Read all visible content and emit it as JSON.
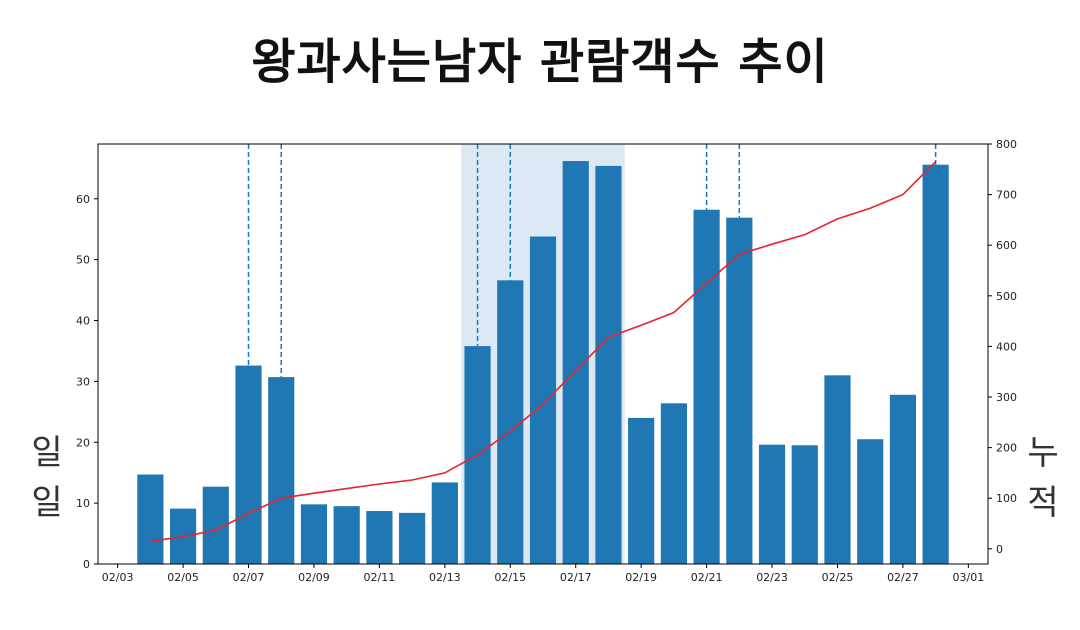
{
  "chart_data": {
    "type": "bar",
    "title": "왕과사는남자 관람객수 추이",
    "ylabel_left_chars": [
      "일",
      "일"
    ],
    "ylabel_right_chars": [
      "누",
      "적"
    ],
    "x_domain": [
      "2026-02-03",
      "2026-03-01"
    ],
    "xticks": [
      "02/03",
      "02/05",
      "02/07",
      "02/09",
      "02/11",
      "02/13",
      "02/15",
      "02/17",
      "02/19",
      "02/21",
      "02/23",
      "02/25",
      "02/27",
      "03/01"
    ],
    "ylim_left": [
      0,
      69
    ],
    "yticks_left": [
      0,
      10,
      20,
      30,
      40,
      50,
      60
    ],
    "ylim_right": [
      -30,
      800
    ],
    "yticks_right": [
      0,
      100,
      200,
      300,
      400,
      500,
      600,
      700,
      800
    ],
    "grid": false,
    "legend": "none",
    "highlight_span": [
      "2026-02-14",
      "2026-02-18"
    ],
    "highlight_color": "#dce9f5",
    "marker_dates": [
      "2026-02-07",
      "2026-02-08",
      "2026-02-14",
      "2026-02-15",
      "2026-02-21",
      "2026-02-22",
      "2026-02-28"
    ],
    "bar_color": "#1f77b4",
    "line_color": "#e8242c",
    "series": [
      {
        "type": "bar",
        "x": [
          "2026-02-04",
          "2026-02-05",
          "2026-02-06",
          "2026-02-07",
          "2026-02-08",
          "2026-02-09",
          "2026-02-10",
          "2026-02-11",
          "2026-02-12",
          "2026-02-13",
          "2026-02-14",
          "2026-02-15",
          "2026-02-16",
          "2026-02-17",
          "2026-02-18",
          "2026-02-19",
          "2026-02-20",
          "2026-02-21",
          "2026-02-22",
          "2026-02-23",
          "2026-02-24",
          "2026-02-25",
          "2026-02-26",
          "2026-02-27",
          "2026-02-28"
        ],
        "values": [
          14.7,
          9.1,
          12.7,
          32.6,
          30.7,
          9.8,
          9.5,
          8.7,
          8.4,
          13.4,
          35.8,
          46.6,
          53.8,
          66.2,
          65.4,
          24.0,
          26.4,
          58.2,
          56.9,
          19.6,
          19.5,
          31.0,
          20.5,
          27.8,
          65.6
        ]
      },
      {
        "type": "line",
        "axis": "right",
        "x": [
          "2026-02-04",
          "2026-02-05",
          "2026-02-06",
          "2026-02-07",
          "2026-02-08",
          "2026-02-09",
          "2026-02-10",
          "2026-02-11",
          "2026-02-12",
          "2026-02-13",
          "2026-02-14",
          "2026-02-15",
          "2026-02-16",
          "2026-02-17",
          "2026-02-18",
          "2026-02-19",
          "2026-02-20",
          "2026-02-21",
          "2026-02-22",
          "2026-02-23",
          "2026-02-24",
          "2026-02-25",
          "2026-02-26",
          "2026-02-27",
          "2026-02-28"
        ],
        "values": [
          15,
          24,
          37,
          70,
          100,
          110,
          119,
          128,
          136,
          150,
          186,
          232,
          286,
          352,
          418,
          442,
          467,
          525,
          582,
          602,
          621,
          652,
          673,
          700,
          765
        ]
      }
    ]
  }
}
